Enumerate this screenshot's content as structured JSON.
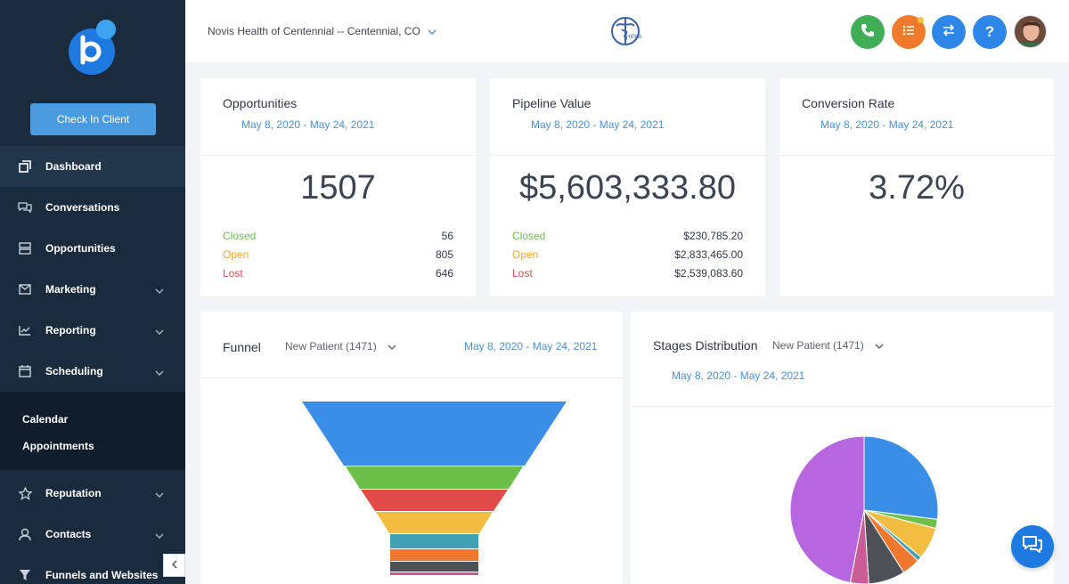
{
  "sidebar": {
    "check_in_label": "Check In Client",
    "items": [
      {
        "label": "Dashboard",
        "icon": "copy-icon"
      },
      {
        "label": "Conversations",
        "icon": "chat-icon"
      },
      {
        "label": "Opportunities",
        "icon": "layers-icon"
      },
      {
        "label": "Marketing",
        "icon": "mail-icon"
      },
      {
        "label": "Reporting",
        "icon": "chart-icon"
      },
      {
        "label": "Scheduling",
        "icon": "calendar-icon"
      }
    ],
    "sub_items": [
      {
        "label": "Calendar"
      },
      {
        "label": "Appointments"
      }
    ],
    "items_bottom": [
      {
        "label": "Reputation",
        "icon": "star-icon"
      },
      {
        "label": "Contacts",
        "icon": "person-icon"
      },
      {
        "label": "Funnels and Websites",
        "icon": "funnel-icon"
      }
    ]
  },
  "header": {
    "location": "Novis Health of Centennial -- Centennial, CO",
    "hipaa_text": "HIPAA",
    "buttons": [
      {
        "name": "phone",
        "color": "#3fae57"
      },
      {
        "name": "tasks",
        "color": "#f07a2b"
      },
      {
        "name": "switch",
        "color": "#2d86e8"
      },
      {
        "name": "help",
        "color": "#2d86e8",
        "label": "?"
      }
    ]
  },
  "cards": {
    "opportunities": {
      "title": "Opportunities",
      "date": "May 8, 2020 - May 24, 2021",
      "value": "1507",
      "closed_label": "Closed",
      "closed_value": "56",
      "open_label": "Open",
      "open_value": "805",
      "lost_label": "Lost",
      "lost_value": "646"
    },
    "pipeline": {
      "title": "Pipeline Value",
      "date": "May 8, 2020 - May 24, 2021",
      "value": "$5,603,333.80",
      "closed_label": "Closed",
      "closed_value": "$230,785.20",
      "open_label": "Open",
      "open_value": "$2,833,465.00",
      "lost_label": "Lost",
      "lost_value": "$2,539,083.60"
    },
    "conversion": {
      "title": "Conversion Rate",
      "date": "May 8, 2020 - May 24, 2021",
      "value": "3.72%"
    }
  },
  "funnel": {
    "title": "Funnel",
    "pipeline": "New Patient (1471)",
    "date": "May 8, 2020 - May 24, 2021",
    "stage_colors": [
      "#3b8ee8",
      "#6cc04a",
      "#e04b47",
      "#f3bd41",
      "#3fa1b3",
      "#f0772e",
      "#4e5157",
      "#cc5c97"
    ]
  },
  "stages": {
    "title": "Stages Distribution",
    "pipeline": "New Patient (1471)",
    "date": "May 8, 2020 - May 24, 2021",
    "slices": [
      {
        "value": 27,
        "color": "#3b8ee8"
      },
      {
        "value": 2,
        "color": "#6cc04a"
      },
      {
        "value": 7,
        "color": "#f3bd41"
      },
      {
        "value": 1,
        "color": "#3fa1b3"
      },
      {
        "value": 4,
        "color": "#f0772e"
      },
      {
        "value": 8,
        "color": "#4e5157"
      },
      {
        "value": 4,
        "color": "#cc5c97"
      },
      {
        "value": 47,
        "color": "#b866e0"
      }
    ]
  }
}
